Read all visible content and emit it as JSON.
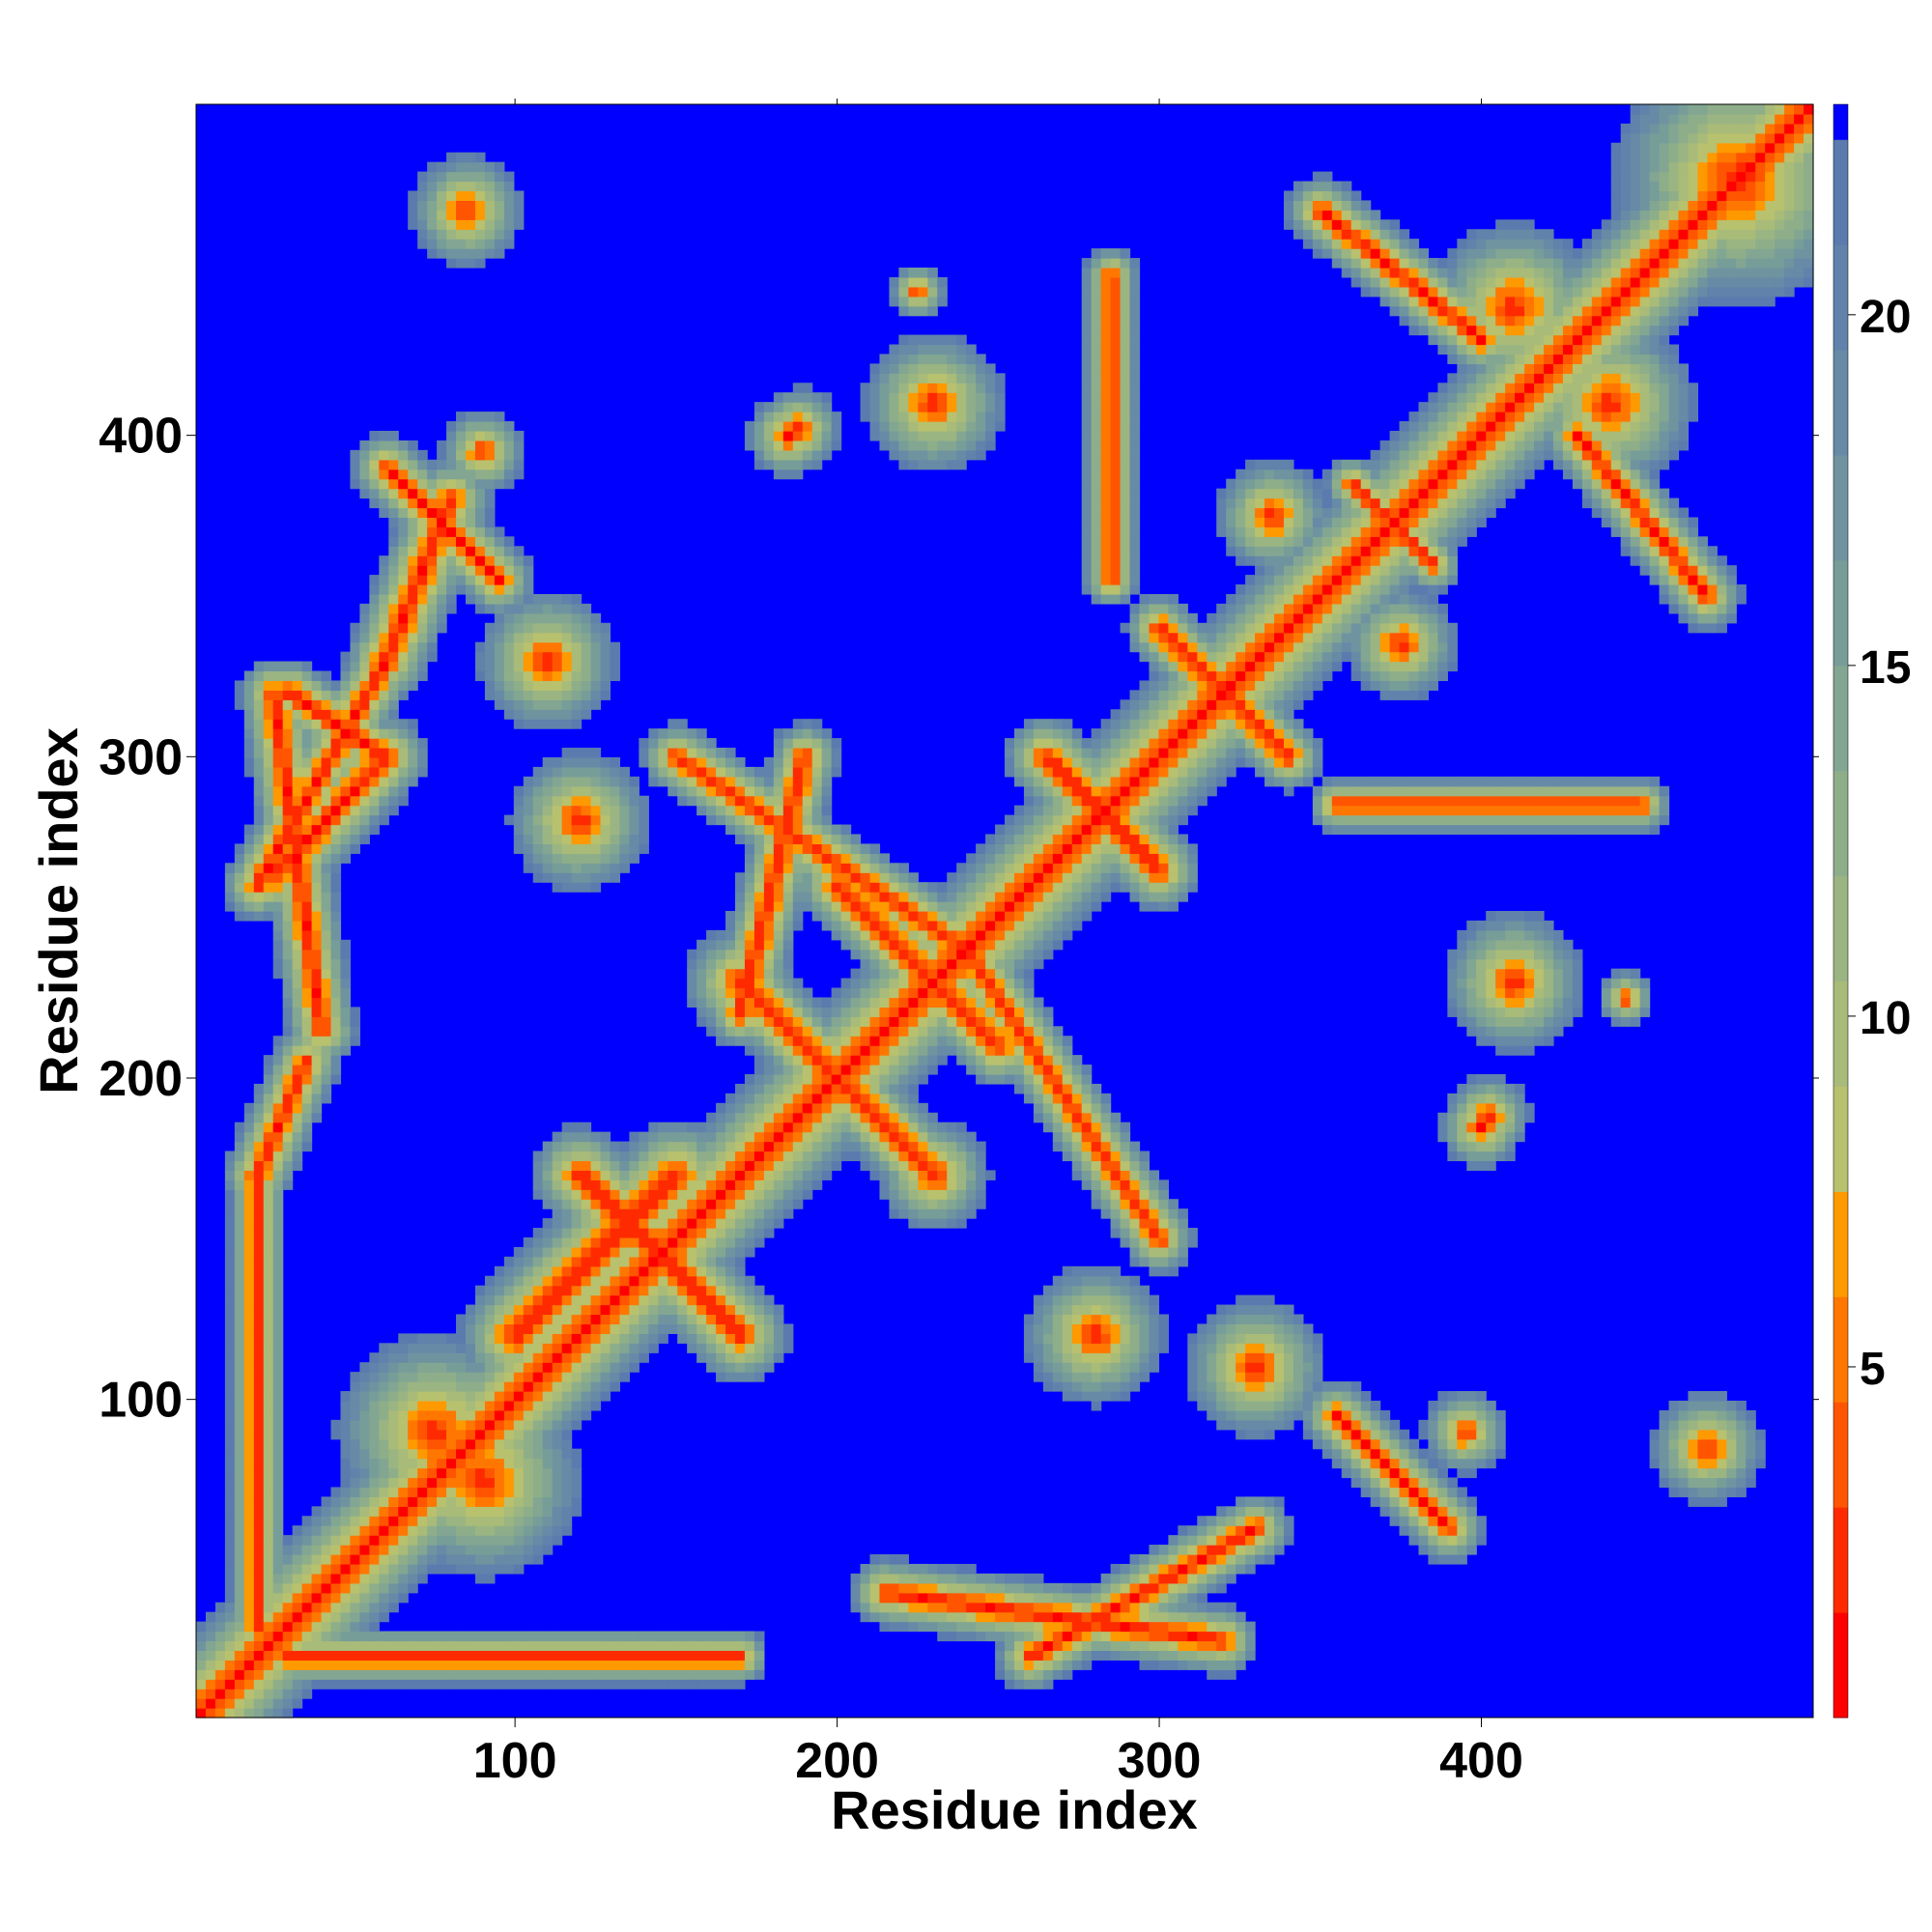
{
  "chart_data": {
    "type": "heatmap",
    "title": "",
    "xlabel": "Residue index",
    "ylabel": "Residue index",
    "xlim": [
      1,
      503
    ],
    "ylim": [
      1,
      503
    ],
    "x_ticks": [
      100,
      200,
      300,
      400
    ],
    "y_ticks": [
      100,
      200,
      300,
      400
    ],
    "colorbar": {
      "range": [
        0,
        23
      ],
      "ticks": [
        5,
        10,
        15,
        20
      ],
      "levels": [
        {
          "from": 0,
          "to": 1.5,
          "color": "#ff0000"
        },
        {
          "from": 1.5,
          "to": 3,
          "color": "#ff2a00"
        },
        {
          "from": 3,
          "to": 4.5,
          "color": "#ff5500"
        },
        {
          "from": 4.5,
          "to": 6,
          "color": "#ff7700"
        },
        {
          "from": 6,
          "to": 7.5,
          "color": "#ff9900"
        },
        {
          "from": 7.5,
          "to": 9,
          "color": "#b8c16e"
        },
        {
          "from": 9,
          "to": 10.5,
          "color": "#a9bb78"
        },
        {
          "from": 10.5,
          "to": 12,
          "color": "#9bb582"
        },
        {
          "from": 12,
          "to": 13.5,
          "color": "#8eae8a"
        },
        {
          "from": 13.5,
          "to": 15,
          "color": "#82a692"
        },
        {
          "from": 15,
          "to": 16.5,
          "color": "#779d99"
        },
        {
          "from": 16.5,
          "to": 18,
          "color": "#6f94a0"
        },
        {
          "from": 18,
          "to": 19.5,
          "color": "#678aa6"
        },
        {
          "from": 19.5,
          "to": 21,
          "color": "#6082ab"
        },
        {
          "from": 21,
          "to": 22.5,
          "color": "#5b7bae"
        },
        {
          "from": 22.5,
          "to": 23,
          "color": "#0000ff"
        }
      ]
    },
    "background_value": 23,
    "diagonal_value": 2,
    "features": [
      {
        "kind": "band",
        "from": [
          1,
          1
        ],
        "to": [
          503,
          503
        ],
        "halfwidth": 9
      },
      {
        "kind": "band",
        "from": [
          25,
          263
        ],
        "to": [
          60,
          300
        ],
        "halfwidth": 6
      },
      {
        "kind": "band",
        "from": [
          20,
          170
        ],
        "to": [
          35,
          205
        ],
        "halfwidth": 5
      },
      {
        "kind": "band",
        "from": [
          30,
          320
        ],
        "to": [
          60,
          300
        ],
        "halfwidth": 5
      },
      {
        "kind": "band",
        "from": [
          80,
          380
        ],
        "to": [
          60,
          330
        ],
        "halfwidth": 6
      },
      {
        "kind": "band",
        "from": [
          100,
          120
        ],
        "to": [
          150,
          170
        ],
        "halfwidth": 8
      },
      {
        "kind": "band",
        "from": [
          120,
          170
        ],
        "to": [
          170,
          120
        ],
        "halfwidth": 7
      },
      {
        "kind": "band",
        "from": [
          170,
          230
        ],
        "to": [
          230,
          170
        ],
        "halfwidth": 6
      },
      {
        "kind": "band",
        "from": [
          200,
          260
        ],
        "to": [
          250,
          210
        ],
        "halfwidth": 6
      },
      {
        "kind": "band",
        "from": [
          265,
          300
        ],
        "to": [
          300,
          265
        ],
        "halfwidth": 6
      },
      {
        "kind": "band",
        "from": [
          300,
          340
        ],
        "to": [
          340,
          300
        ],
        "halfwidth": 5
      },
      {
        "kind": "band",
        "from": [
          360,
          385
        ],
        "to": [
          385,
          360
        ],
        "halfwidth": 4
      },
      {
        "kind": "band",
        "from": [
          170,
          220
        ],
        "to": [
          190,
          300
        ],
        "halfwidth": 5
      },
      {
        "kind": "band",
        "from": [
          260,
          20
        ],
        "to": [
          330,
          60
        ],
        "halfwidth": 5
      },
      {
        "kind": "band",
        "from": [
          20,
          260
        ],
        "to": [
          60,
          330
        ],
        "halfwidth": 5
      },
      {
        "kind": "band",
        "from": [
          355,
          95
        ],
        "to": [
          390,
          60
        ],
        "halfwidth": 5
      },
      {
        "kind": "band",
        "from": [
          95,
          355
        ],
        "to": [
          60,
          390
        ],
        "halfwidth": 5
      },
      {
        "kind": "band",
        "from": [
          430,
          400
        ],
        "to": [
          470,
          350
        ],
        "halfwidth": 5
      },
      {
        "kind": "band",
        "from": [
          400,
          430
        ],
        "to": [
          350,
          470
        ],
        "halfwidth": 5
      },
      {
        "kind": "band",
        "from": [
          355,
          285
        ],
        "to": [
          450,
          285
        ],
        "halfwidth": 4
      },
      {
        "kind": "band",
        "from": [
          285,
          355
        ],
        "to": [
          285,
          450
        ],
        "halfwidth": 4
      },
      {
        "kind": "band",
        "from": [
          30,
          20
        ],
        "to": [
          170,
          20
        ],
        "halfwidth": 4
      },
      {
        "kind": "band",
        "from": [
          20,
          30
        ],
        "to": [
          20,
          170
        ],
        "halfwidth": 4
      },
      {
        "kind": "band",
        "from": [
          150,
          300
        ],
        "to": [
          240,
          240
        ],
        "halfwidth": 5
      },
      {
        "kind": "band",
        "from": [
          300,
          150
        ],
        "to": [
          240,
          240
        ],
        "halfwidth": 5
      },
      {
        "kind": "band",
        "from": [
          215,
          40
        ],
        "to": [
          320,
          25
        ],
        "halfwidth": 5
      },
      {
        "kind": "band",
        "from": [
          40,
          215
        ],
        "to": [
          25,
          320
        ],
        "halfwidth": 5
      },
      {
        "kind": "blob",
        "at": [
          75,
          90
        ],
        "r": 14
      },
      {
        "kind": "blob",
        "at": [
          90,
          75
        ],
        "r": 14
      },
      {
        "kind": "blob",
        "at": [
          280,
          120
        ],
        "r": 10
      },
      {
        "kind": "blob",
        "at": [
          120,
          280
        ],
        "r": 10
      },
      {
        "kind": "blob",
        "at": [
          230,
          170
        ],
        "r": 8
      },
      {
        "kind": "blob",
        "at": [
          170,
          230
        ],
        "r": 8
      },
      {
        "kind": "blob",
        "at": [
          410,
          230
        ],
        "r": 10
      },
      {
        "kind": "blob",
        "at": [
          230,
          410
        ],
        "r": 10
      },
      {
        "kind": "blob",
        "at": [
          402,
          188
        ],
        "r": 6
      },
      {
        "kind": "blob",
        "at": [
          188,
          402
        ],
        "r": 6
      },
      {
        "kind": "blob",
        "at": [
          375,
          335
        ],
        "r": 8
      },
      {
        "kind": "blob",
        "at": [
          335,
          375
        ],
        "r": 8
      },
      {
        "kind": "blob",
        "at": [
          470,
          85
        ],
        "r": 8
      },
      {
        "kind": "blob",
        "at": [
          85,
          470
        ],
        "r": 8
      },
      {
        "kind": "blob",
        "at": [
          445,
          225
        ],
        "r": 4
      },
      {
        "kind": "blob",
        "at": [
          225,
          445
        ],
        "r": 4
      },
      {
        "kind": "blob",
        "at": [
          480,
          480
        ],
        "r": 18
      },
      {
        "kind": "blob",
        "at": [
          440,
          410
        ],
        "r": 12
      },
      {
        "kind": "blob",
        "at": [
          410,
          440
        ],
        "r": 12
      },
      {
        "kind": "blob",
        "at": [
          185,
          400
        ],
        "r": 6
      },
      {
        "kind": "blob",
        "at": [
          400,
          185
        ],
        "r": 6
      },
      {
        "kind": "blob",
        "at": [
          330,
          110
        ],
        "r": 10
      },
      {
        "kind": "blob",
        "at": [
          110,
          330
        ],
        "r": 10
      },
      {
        "kind": "blob",
        "at": [
          395,
          90
        ],
        "r": 6
      },
      {
        "kind": "blob",
        "at": [
          90,
          395
        ],
        "r": 6
      }
    ]
  }
}
